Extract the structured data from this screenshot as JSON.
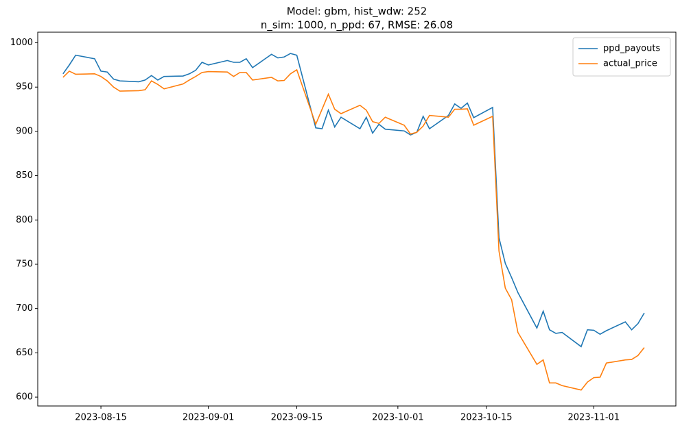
{
  "chart_data": {
    "type": "line",
    "title": "Model: gbm, hist_wdw: 252",
    "subtitle": "n_sim: 1000, n_ppd: 67, RMSE: 26.08",
    "x": [
      "2023-08-09",
      "2023-08-10",
      "2023-08-11",
      "2023-08-14",
      "2023-08-15",
      "2023-08-16",
      "2023-08-17",
      "2023-08-18",
      "2023-08-21",
      "2023-08-22",
      "2023-08-23",
      "2023-08-24",
      "2023-08-25",
      "2023-08-28",
      "2023-08-29",
      "2023-08-30",
      "2023-08-31",
      "2023-09-01",
      "2023-09-04",
      "2023-09-05",
      "2023-09-06",
      "2023-09-07",
      "2023-09-08",
      "2023-09-11",
      "2023-09-12",
      "2023-09-13",
      "2023-09-14",
      "2023-09-15",
      "2023-09-18",
      "2023-09-19",
      "2023-09-20",
      "2023-09-21",
      "2023-09-22",
      "2023-09-25",
      "2023-09-26",
      "2023-09-27",
      "2023-09-28",
      "2023-09-29",
      "2023-10-02",
      "2023-10-03",
      "2023-10-04",
      "2023-10-05",
      "2023-10-06",
      "2023-10-09",
      "2023-10-10",
      "2023-10-11",
      "2023-10-12",
      "2023-10-13",
      "2023-10-16",
      "2023-10-17",
      "2023-10-18",
      "2023-10-19",
      "2023-10-20",
      "2023-10-23",
      "2023-10-24",
      "2023-10-25",
      "2023-10-26",
      "2023-10-27",
      "2023-10-30",
      "2023-10-31",
      "2023-11-01",
      "2023-11-02",
      "2023-11-03",
      "2023-11-06",
      "2023-11-07",
      "2023-11-08",
      "2023-11-09"
    ],
    "series": [
      {
        "name": "ppd_payouts",
        "color": "#1f77b4",
        "values": [
          965,
          975,
          986,
          982,
          968,
          967,
          959,
          957,
          956,
          958,
          963,
          958,
          962,
          962.5,
          965,
          969,
          978,
          975,
          980,
          978,
          978,
          982,
          972,
          987,
          983,
          984,
          988,
          986,
          904,
          903,
          924,
          905,
          916,
          903,
          916,
          898,
          908,
          902.5,
          900.5,
          896,
          899,
          917,
          903,
          918,
          931,
          926,
          932,
          915.5,
          927,
          780,
          751,
          735,
          718,
          678,
          697,
          676,
          672,
          673,
          657,
          676,
          675.5,
          671,
          675,
          685,
          676,
          683,
          695
        ]
      },
      {
        "name": "actual_price",
        "color": "#ff7f0e",
        "values": [
          961,
          968,
          964.5,
          965,
          962,
          957,
          950,
          945.5,
          946,
          947,
          957,
          953,
          948,
          953.5,
          958,
          962,
          966.5,
          967.5,
          967,
          962,
          966.5,
          966.5,
          958,
          961,
          957,
          957.5,
          965,
          969.5,
          908,
          925,
          942,
          925,
          920,
          929.5,
          924,
          911,
          909,
          916,
          907,
          897,
          899,
          906,
          918,
          916,
          925,
          925,
          925.5,
          907,
          917,
          765,
          723,
          710,
          673,
          637,
          642,
          616,
          616,
          613,
          608,
          617,
          622,
          622.5,
          638.5,
          642,
          642.5,
          647,
          656
        ]
      }
    ],
    "xlim": [
      "2023-08-05",
      "2023-11-14"
    ],
    "xticks": [
      "2023-08-15",
      "2023-09-01",
      "2023-09-15",
      "2023-10-01",
      "2023-10-15",
      "2023-11-01"
    ],
    "ylim": [
      590,
      1012
    ],
    "yticks": [
      600,
      650,
      700,
      750,
      800,
      850,
      900,
      950,
      1000
    ],
    "grid": false,
    "legend": "upper right"
  }
}
